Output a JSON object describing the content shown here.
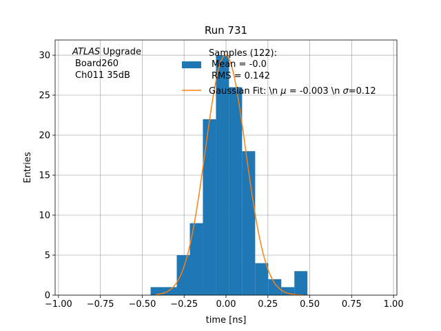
{
  "chart_data": {
    "type": "bar",
    "title": "Run 731",
    "xlabel": "time [ns]",
    "ylabel": "Entries",
    "xlim": [
      -1.02,
      1.02
    ],
    "ylim": [
      0,
      31.9
    ],
    "xticks": [
      "−1.00",
      "−0.75",
      "−0.50",
      "−0.25",
      "0.00",
      "0.25",
      "0.50",
      "0.75",
      "1.00"
    ],
    "yticks": [
      "0",
      "5",
      "10",
      "15",
      "20",
      "25",
      "30"
    ],
    "grid": true,
    "annotation": {
      "line1_italic": "ATLAS",
      "line1_rest": " Upgrade",
      "line2": "Board260",
      "line3": "Ch011 35dB"
    },
    "histogram": {
      "bin_edges": [
        -0.45,
        -0.372,
        -0.294,
        -0.216,
        -0.138,
        -0.06,
        0.018,
        0.096,
        0.174,
        0.252,
        0.33,
        0.408,
        0.486
      ],
      "counts": [
        1,
        1,
        5,
        9,
        22,
        30,
        26,
        18,
        4,
        2,
        1,
        3
      ],
      "color": "#1f77b4"
    },
    "fit": {
      "mu": -0.003,
      "sigma": 0.12,
      "amplitude": 30,
      "x_range": [
        -0.42,
        0.46
      ],
      "color": "#ff7f0e"
    },
    "legend": {
      "placement": "top-right",
      "samples_line1": "Samples (122):",
      "samples_line2": "Mean = -0.0",
      "samples_line3": "RMS = 0.142",
      "fit_label": "Gaussian Fit: \\n $\\mu$ = -0.003 \\n $\\sigma$=0.12",
      "fit_label_pre": "Gaussian Fit: \\n ",
      "fit_mu_symbol": "μ",
      "fit_label_mid": " = -0.003 \\n ",
      "fit_sigma_symbol": "σ",
      "fit_label_post": "=0.12"
    }
  }
}
